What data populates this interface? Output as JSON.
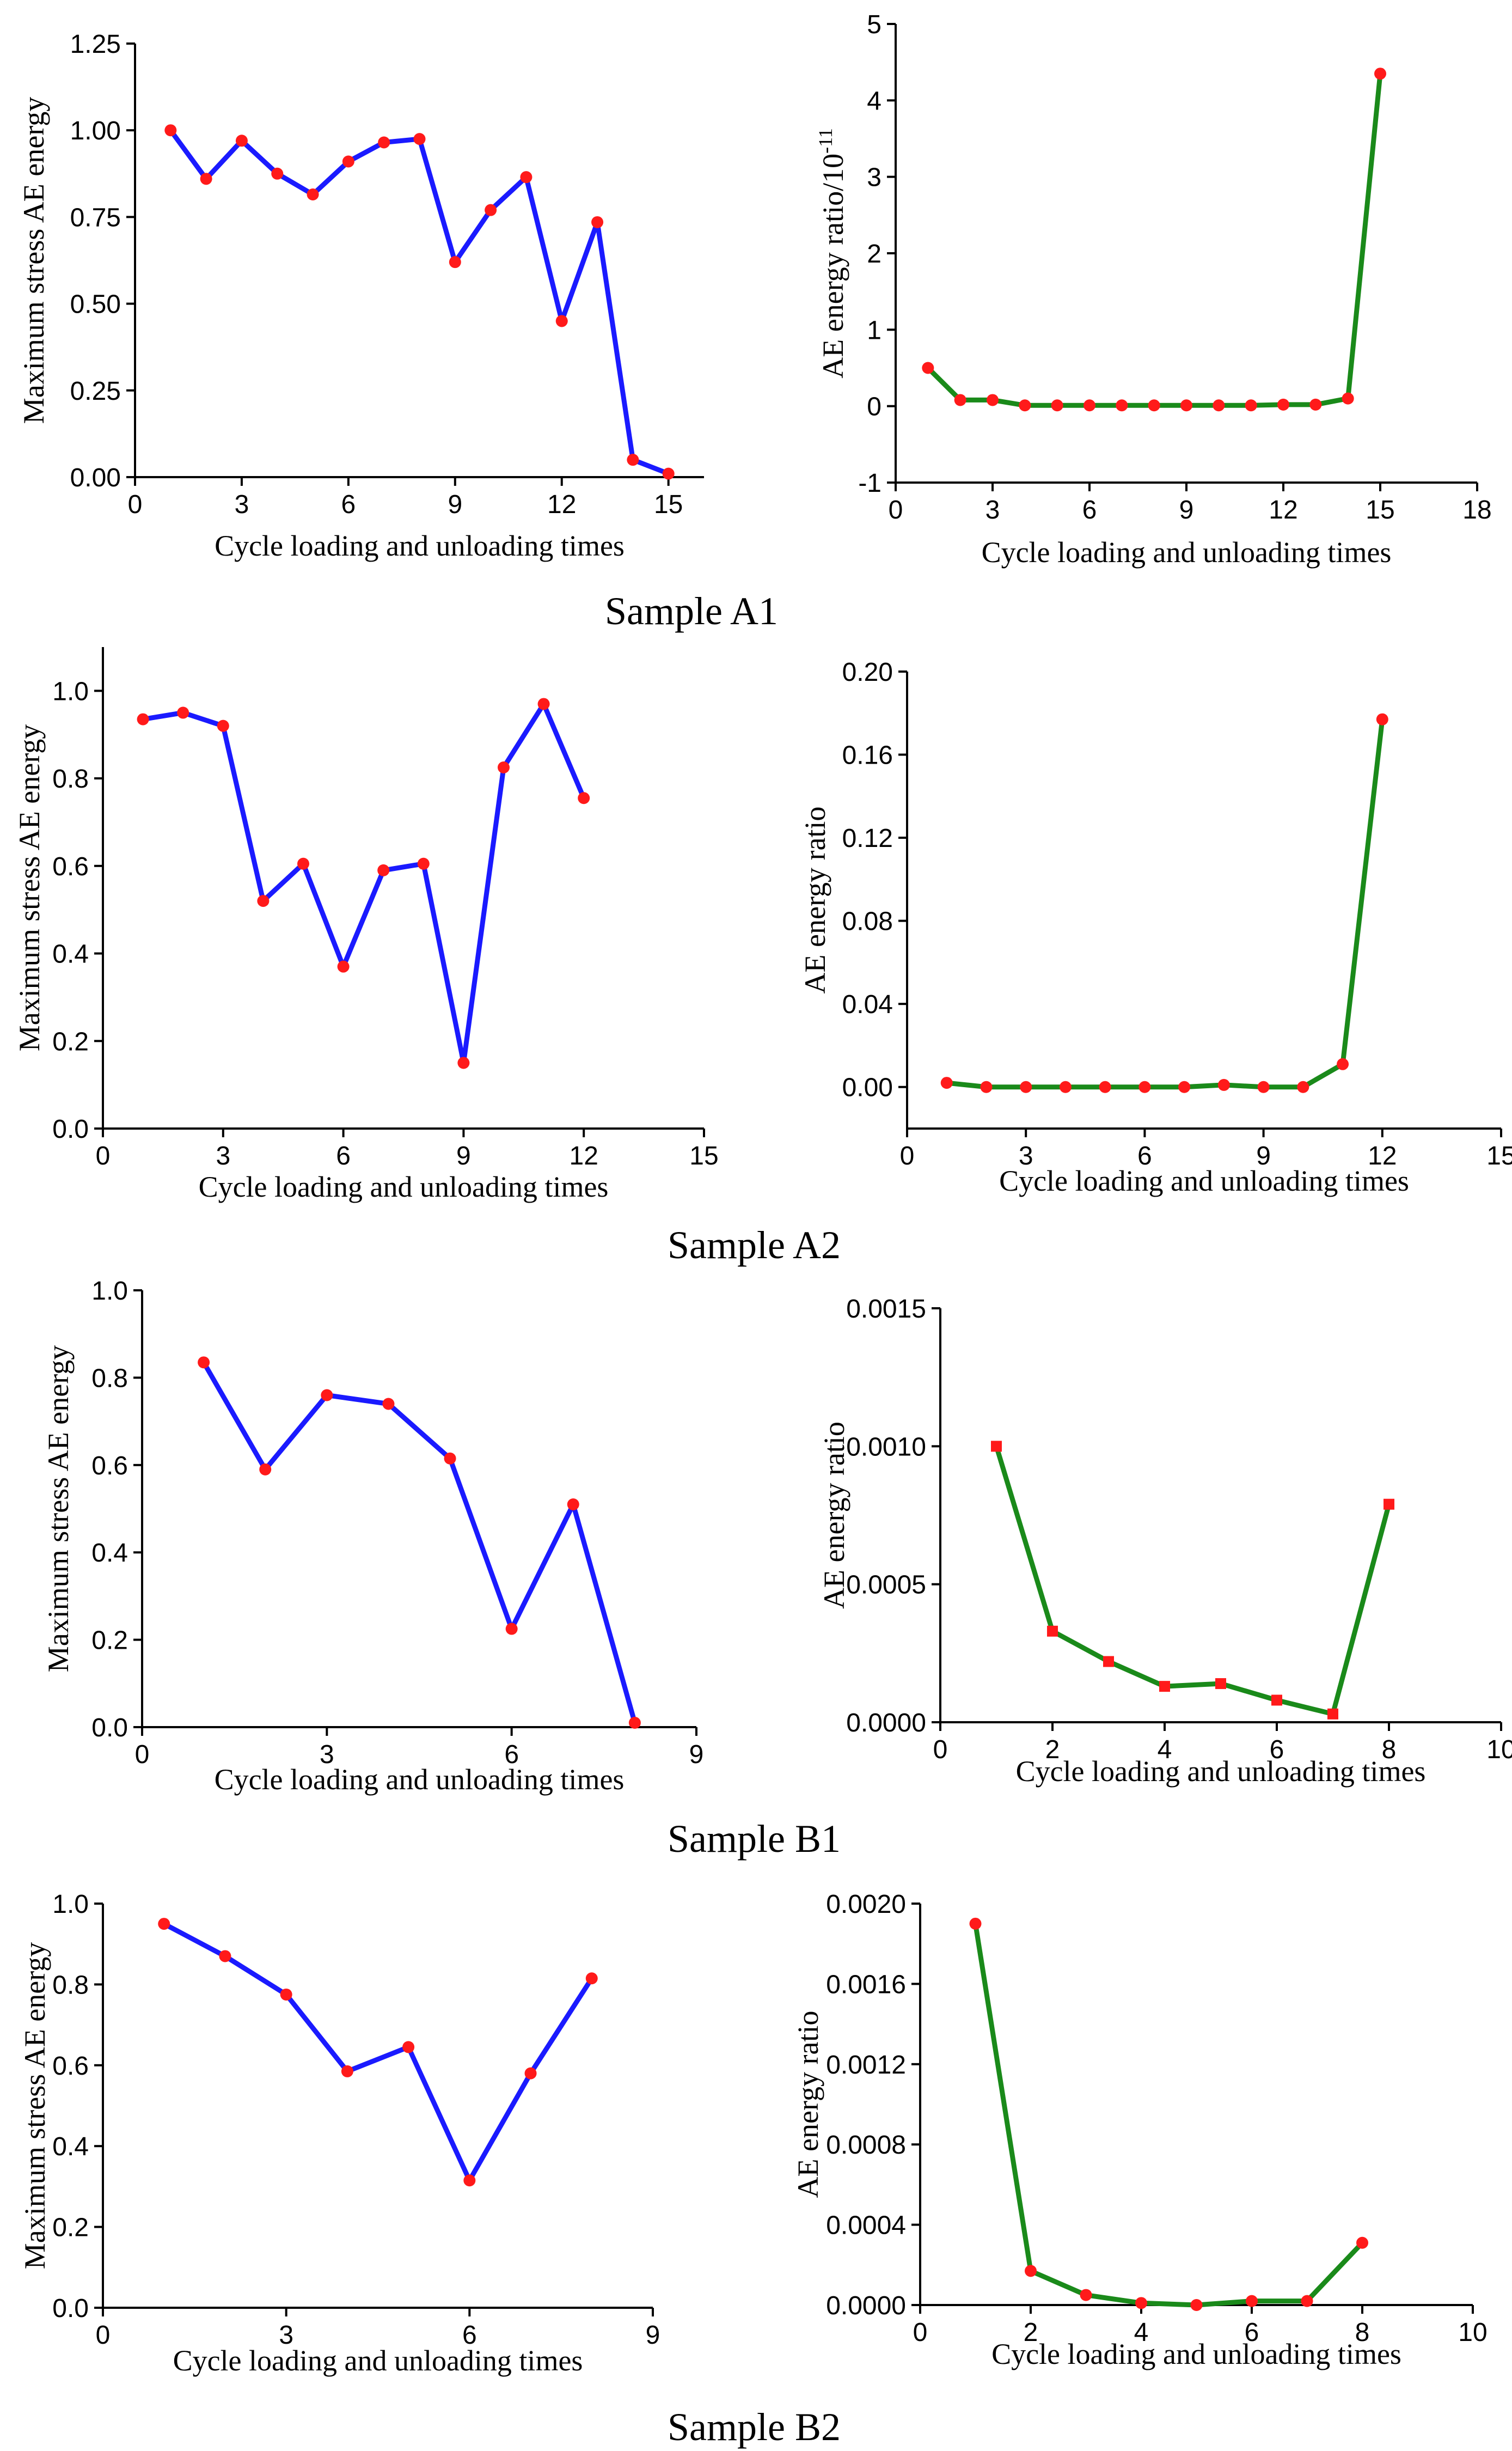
{
  "chart_data": [
    {
      "id": "a1-left",
      "type": "line",
      "sample": "Sample A1",
      "xlabel": "Cycle loading and unloading times",
      "ylabel": "Maximum stress AE energy",
      "xlim": [
        0,
        16
      ],
      "ylim": [
        0,
        1.25
      ],
      "xticks": [
        "0",
        "3",
        "6",
        "9",
        "12",
        "15"
      ],
      "xtick_values": [
        0,
        3,
        6,
        9,
        12,
        15
      ],
      "yticks": [
        "0.00",
        "0.25",
        "0.50",
        "0.75",
        "1.00",
        "1.25"
      ],
      "ytick_values": [
        0,
        0.25,
        0.5,
        0.75,
        1.0,
        1.25
      ],
      "line_color": "#1a1aff",
      "marker_color": "#ff1a1a",
      "marker": "circle",
      "series": [
        {
          "name": "A1 max stress AE energy",
          "x": [
            1,
            2,
            3,
            4,
            5,
            6,
            7,
            8,
            9,
            10,
            11,
            12,
            13,
            14,
            15
          ],
          "y": [
            1.0,
            0.86,
            0.97,
            0.875,
            0.815,
            0.91,
            0.965,
            0.975,
            0.62,
            0.77,
            0.865,
            0.45,
            0.735,
            0.05,
            0.01
          ]
        }
      ]
    },
    {
      "id": "a1-right",
      "type": "line",
      "sample": "Sample A1",
      "xlabel": "Cycle loading and unloading times",
      "ylabel": "AE energy ratio/10",
      "ylabel_superscript": "-11",
      "xlim": [
        0,
        18
      ],
      "ylim": [
        -1,
        5
      ],
      "xticks": [
        "0",
        "3",
        "6",
        "9",
        "12",
        "15",
        "18"
      ],
      "xtick_values": [
        0,
        3,
        6,
        9,
        12,
        15,
        18
      ],
      "yticks": [
        "-1",
        "0",
        "1",
        "2",
        "3",
        "4",
        "5"
      ],
      "ytick_values": [
        -1,
        0,
        1,
        2,
        3,
        4,
        5
      ],
      "line_color": "#1a8a1a",
      "marker_color": "#ff1a1a",
      "marker": "circle",
      "series": [
        {
          "name": "A1 AE energy ratio",
          "x": [
            1,
            2,
            3,
            4,
            5,
            6,
            7,
            8,
            9,
            10,
            11,
            12,
            13,
            14,
            15
          ],
          "y": [
            0.5,
            0.08,
            0.08,
            0.01,
            0.01,
            0.01,
            0.01,
            0.01,
            0.01,
            0.01,
            0.01,
            0.02,
            0.02,
            0.1,
            4.35
          ]
        }
      ]
    },
    {
      "id": "a2-left",
      "type": "line",
      "sample": "Sample A2",
      "xlabel": "Cycle loading and unloading times",
      "ylabel": "Maximum stress AE energy",
      "xlim": [
        0,
        15
      ],
      "ylim": [
        0,
        1.1
      ],
      "xticks": [
        "0",
        "3",
        "6",
        "9",
        "12",
        "15"
      ],
      "xtick_values": [
        0,
        3,
        6,
        9,
        12,
        15
      ],
      "yticks": [
        "0.0",
        "0.2",
        "0.4",
        "0.6",
        "0.8",
        "1.0"
      ],
      "ytick_values": [
        0,
        0.2,
        0.4,
        0.6,
        0.8,
        1.0
      ],
      "line_color": "#1a1aff",
      "marker_color": "#ff1a1a",
      "marker": "circle",
      "series": [
        {
          "name": "A2 max stress AE energy",
          "x": [
            1,
            2,
            3,
            4,
            5,
            6,
            7,
            8,
            9,
            10,
            11,
            12
          ],
          "y": [
            0.935,
            0.95,
            0.92,
            0.52,
            0.605,
            0.37,
            0.59,
            0.605,
            0.15,
            0.825,
            0.97,
            0.755
          ]
        }
      ]
    },
    {
      "id": "a2-right",
      "type": "line",
      "sample": "Sample A2",
      "xlabel": "Cycle loading and unloading times",
      "ylabel": "AE energy ratio",
      "xlim": [
        0,
        15
      ],
      "ylim": [
        -0.02,
        0.2
      ],
      "xticks": [
        "0",
        "3",
        "6",
        "9",
        "12",
        "15"
      ],
      "xtick_values": [
        0,
        3,
        6,
        9,
        12,
        15
      ],
      "yticks": [
        "0.00",
        "0.04",
        "0.08",
        "0.12",
        "0.16",
        "0.20"
      ],
      "ytick_values": [
        0,
        0.04,
        0.08,
        0.12,
        0.16,
        0.2
      ],
      "line_color": "#1a8a1a",
      "marker_color": "#ff1a1a",
      "marker": "circle",
      "series": [
        {
          "name": "A2 AE energy ratio",
          "x": [
            1,
            2,
            3,
            4,
            5,
            6,
            7,
            8,
            9,
            10,
            11,
            12
          ],
          "y": [
            0.002,
            0.0,
            0.0,
            0.0,
            0.0,
            0.0,
            0.0,
            0.001,
            0.0,
            0.0,
            0.011,
            0.177
          ]
        }
      ]
    },
    {
      "id": "b1-left",
      "type": "line",
      "sample": "Sample B1",
      "xlabel": "Cycle loading and unloading times",
      "ylabel": "Maximum stress AE energy",
      "xlim": [
        0,
        9
      ],
      "ylim": [
        0,
        1.0
      ],
      "xticks": [
        "0",
        "3",
        "6",
        "9"
      ],
      "xtick_values": [
        0,
        3,
        6,
        9
      ],
      "yticks": [
        "0.0",
        "0.2",
        "0.4",
        "0.6",
        "0.8",
        "1.0"
      ],
      "ytick_values": [
        0,
        0.2,
        0.4,
        0.6,
        0.8,
        1.0
      ],
      "line_color": "#1a1aff",
      "marker_color": "#ff1a1a",
      "marker": "circle",
      "series": [
        {
          "name": "B1 max stress AE energy",
          "x": [
            1,
            2,
            3,
            4,
            5,
            6,
            7,
            8
          ],
          "y": [
            0.835,
            0.59,
            0.76,
            0.74,
            0.615,
            0.225,
            0.51,
            0.01
          ]
        }
      ]
    },
    {
      "id": "b1-right",
      "type": "line",
      "sample": "Sample B1",
      "xlabel": "Cycle loading and unloading times",
      "ylabel": "AE energy ratio",
      "xlim": [
        0,
        10
      ],
      "ylim": [
        0,
        0.0015
      ],
      "xticks": [
        "0",
        "2",
        "4",
        "6",
        "8",
        "10"
      ],
      "xtick_values": [
        0,
        2,
        4,
        6,
        8,
        10
      ],
      "yticks": [
        "0.0000",
        "0.0005",
        "0.0010",
        "0.0015"
      ],
      "ytick_values": [
        0,
        0.0005,
        0.001,
        0.0015
      ],
      "line_color": "#1a8a1a",
      "marker_color": "#ff1a1a",
      "marker": "square",
      "series": [
        {
          "name": "B1 AE energy ratio",
          "x": [
            1,
            2,
            3,
            4,
            5,
            6,
            7,
            8
          ],
          "y": [
            0.001,
            0.00033,
            0.00022,
            0.00013,
            0.00014,
            8e-05,
            3e-05,
            0.00079
          ]
        }
      ]
    },
    {
      "id": "b2-left",
      "type": "line",
      "sample": "Sample B2",
      "xlabel": "Cycle loading and unloading times",
      "ylabel": "Maximum stress AE energy",
      "xlim": [
        0,
        9
      ],
      "ylim": [
        0,
        1.0
      ],
      "xticks": [
        "0",
        "3",
        "6",
        "9"
      ],
      "xtick_values": [
        0,
        3,
        6,
        9
      ],
      "yticks": [
        "0.0",
        "0.2",
        "0.4",
        "0.6",
        "0.8",
        "1.0"
      ],
      "ytick_values": [
        0,
        0.2,
        0.4,
        0.6,
        0.8,
        1.0
      ],
      "line_color": "#1a1aff",
      "marker_color": "#ff1a1a",
      "marker": "circle",
      "series": [
        {
          "name": "B2 max stress AE energy",
          "x": [
            1,
            2,
            3,
            4,
            5,
            6,
            7,
            8
          ],
          "y": [
            0.95,
            0.87,
            0.775,
            0.585,
            0.645,
            0.315,
            0.58,
            0.815
          ]
        }
      ]
    },
    {
      "id": "b2-right",
      "type": "line",
      "sample": "Sample B2",
      "xlabel": "Cycle loading and unloading times",
      "ylabel": "AE energy ratio",
      "xlim": [
        0,
        10
      ],
      "ylim": [
        0,
        0.002
      ],
      "xticks": [
        "0",
        "2",
        "4",
        "6",
        "8",
        "10"
      ],
      "xtick_values": [
        0,
        2,
        4,
        6,
        8,
        10
      ],
      "yticks": [
        "0.0000",
        "0.0004",
        "0.0008",
        "0.0012",
        "0.0016",
        "0.0020"
      ],
      "ytick_values": [
        0,
        0.0004,
        0.0008,
        0.0012,
        0.0016,
        0.002
      ],
      "line_color": "#1a8a1a",
      "marker_color": "#ff1a1a",
      "marker": "circle",
      "series": [
        {
          "name": "B2 AE energy ratio",
          "x": [
            1,
            2,
            3,
            4,
            5,
            6,
            7,
            8
          ],
          "y": [
            0.0019,
            0.00017,
            5e-05,
            1e-05,
            0.0,
            2e-05,
            2e-05,
            0.00031
          ]
        }
      ]
    }
  ],
  "captions": [
    "Sample A1",
    "Sample A2",
    "Sample B1",
    "Sample B2"
  ]
}
